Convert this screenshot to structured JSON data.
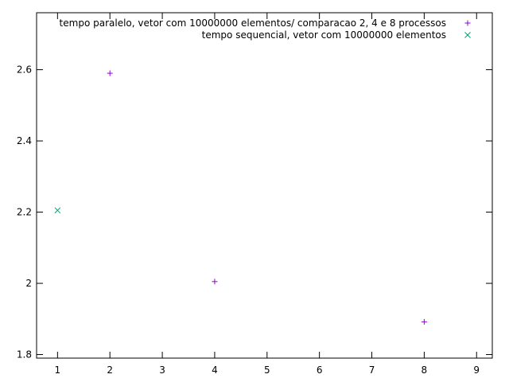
{
  "chart_data": {
    "type": "scatter",
    "title": "",
    "xlabel": "",
    "ylabel": "",
    "xlim": [
      0.6,
      9.3
    ],
    "ylim": [
      1.79,
      2.76
    ],
    "xticks": [
      {
        "value": 1,
        "label": "1"
      },
      {
        "value": 2,
        "label": "2"
      },
      {
        "value": 3,
        "label": "3"
      },
      {
        "value": 4,
        "label": "4"
      },
      {
        "value": 5,
        "label": "5"
      },
      {
        "value": 6,
        "label": "6"
      },
      {
        "value": 7,
        "label": "7"
      },
      {
        "value": 8,
        "label": "8"
      },
      {
        "value": 9,
        "label": "9"
      }
    ],
    "yticks": [
      {
        "value": 1.8,
        "label": "1.8"
      },
      {
        "value": 2.0,
        "label": "2"
      },
      {
        "value": 2.2,
        "label": "2.2"
      },
      {
        "value": 2.4,
        "label": "2.4"
      },
      {
        "value": 2.6,
        "label": "2.6"
      }
    ],
    "grid": false,
    "legend_position": "top-right",
    "series": [
      {
        "name": "tempo paralelo, vetor com 10000000 elementos/ comparacao 2, 4 e 8 processos",
        "marker": "plus",
        "color": "#9400d3",
        "points": [
          {
            "x": 2,
            "y": 2.59
          },
          {
            "x": 4,
            "y": 2.005
          },
          {
            "x": 8,
            "y": 1.892
          }
        ]
      },
      {
        "name": "tempo sequencial, vetor com 10000000 elementos",
        "marker": "cross",
        "color": "#009e73",
        "points": [
          {
            "x": 1,
            "y": 2.205
          }
        ]
      }
    ]
  }
}
